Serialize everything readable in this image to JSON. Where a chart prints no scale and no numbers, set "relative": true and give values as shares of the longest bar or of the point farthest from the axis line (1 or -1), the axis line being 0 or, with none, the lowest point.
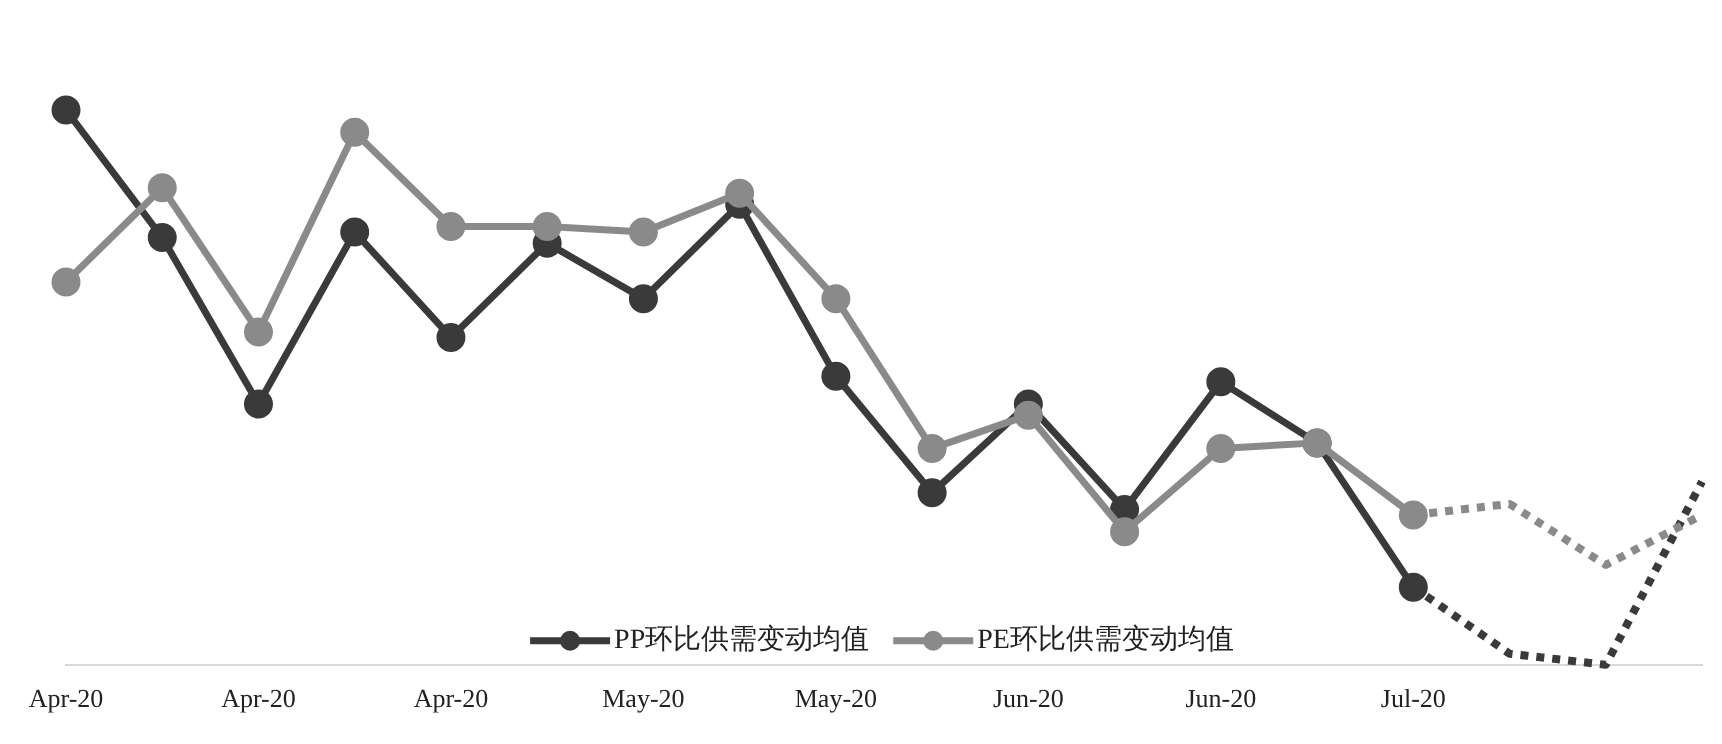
{
  "chart_data": {
    "type": "line",
    "relative": true,
    "categories": [
      "Apr-20",
      null,
      "Apr-20",
      null,
      "Apr-20",
      null,
      "May-20",
      null,
      "May-20",
      null,
      "Jun-20",
      null,
      "Jun-20",
      null,
      "Jul-20",
      null,
      null,
      null
    ],
    "series": [
      {
        "name": "PP环比供需变动均值",
        "color": "#3a3a3a",
        "marker": "circle",
        "line_style": "solid",
        "values": [
          1.0,
          0.77,
          0.47,
          0.78,
          0.59,
          0.76,
          0.66,
          0.83,
          0.52,
          0.31,
          0.47,
          0.28,
          0.51,
          0.4,
          0.14,
          null,
          null,
          null
        ]
      },
      {
        "name": "PE环比供需变动均值",
        "color": "#8a8a8a",
        "marker": "circle",
        "line_style": "solid",
        "values": [
          0.69,
          0.86,
          0.6,
          0.96,
          0.79,
          0.79,
          0.78,
          0.85,
          0.66,
          0.39,
          0.45,
          0.24,
          0.39,
          0.4,
          0.27,
          null,
          null,
          null
        ]
      },
      {
        "color": "#3a3a3a",
        "marker": "none",
        "line_style": "dotted",
        "values": [
          null,
          null,
          null,
          null,
          null,
          null,
          null,
          null,
          null,
          null,
          null,
          null,
          null,
          null,
          0.14,
          0.02,
          0.0,
          0.33
        ]
      },
      {
        "color": "#8a8a8a",
        "marker": "none",
        "line_style": "dotted",
        "values": [
          null,
          null,
          null,
          null,
          null,
          null,
          null,
          null,
          null,
          null,
          null,
          null,
          null,
          null,
          0.27,
          0.29,
          0.18,
          0.27
        ]
      }
    ],
    "legend": "bottom",
    "grid": false
  }
}
